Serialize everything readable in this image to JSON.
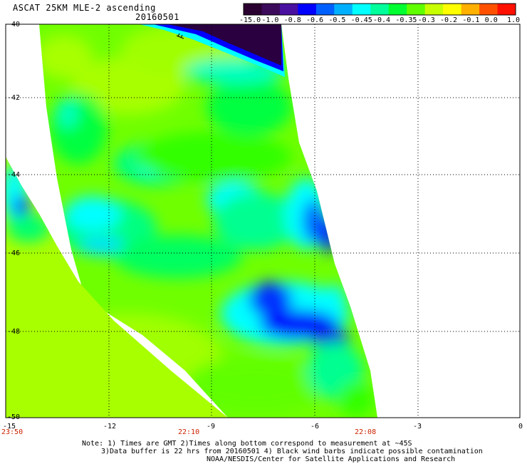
{
  "header": {
    "title": "ASCAT 25KM MLE-2 ascending",
    "date": "20160501"
  },
  "colorbar": {
    "labels": [
      "-15.0",
      "-1.0",
      "-0.8",
      "-0.6",
      "-0.5",
      "-0.45",
      "-0.4",
      "-0.35",
      "-0.3",
      "-0.2",
      "-0.1",
      "0.0",
      "1.0"
    ],
    "colors": [
      "#2a0030",
      "#3c0a5a",
      "#4a10a0",
      "#0000ff",
      "#0060ff",
      "#00b0ff",
      "#00ffff",
      "#00ff9a",
      "#00ff30",
      "#60ff00",
      "#c8ff00",
      "#ffff00",
      "#ffb000",
      "#ff5000",
      "#ff1000"
    ]
  },
  "axes": {
    "lat_labels": [
      "-40",
      "-42",
      "-44",
      "-46",
      "-48",
      "-50"
    ],
    "lon_labels": [
      "-15",
      "-12",
      "-9",
      "-6",
      "-3",
      "0"
    ],
    "time_labels": [
      "23:50",
      "22:10",
      "22:08"
    ]
  },
  "notes": {
    "line1": "Note: 1) Times are GMT 2)Times along bottom correspond to measurement at ~45S",
    "line2": "3)Data buffer is 22 hrs from 20160501 4) Black wind barbs indicate possible contamination",
    "line3": "NOAA/NESDIS/Center for Satellite Applications and Research"
  }
}
